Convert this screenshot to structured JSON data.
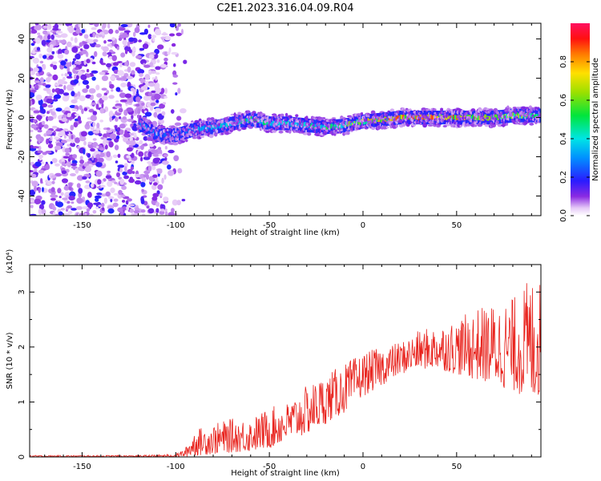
{
  "title": "C2E1.2023.316.04.09.R04",
  "chart_data": [
    {
      "type": "heatmap",
      "xlabel": "Height of straight line (km)",
      "ylabel": "Frequency (Hz)",
      "xlim": [
        -178,
        95
      ],
      "ylim": [
        -50,
        48
      ],
      "xticks": [
        -150,
        -100,
        -50,
        0,
        50
      ],
      "yticks": [
        -40,
        -20,
        0,
        20,
        40
      ],
      "colorbar": {
        "label": "Normalized spectral amplitude",
        "range": [
          0,
          1
        ],
        "ticks": [
          0.0,
          0.2,
          0.4,
          0.6,
          0.8
        ]
      },
      "ridge": {
        "description_points_x": [
          -118,
          -110,
          -100,
          -90,
          -80,
          -70,
          -60,
          -50,
          -40,
          -30,
          -20,
          -10,
          0,
          10,
          20,
          30,
          40,
          50,
          60,
          70,
          80,
          94
        ],
        "frequency_hz": [
          -4,
          -9,
          -9,
          -6,
          -5,
          -3,
          -1,
          -3,
          -3,
          -4,
          -5,
          -4,
          -2,
          -1,
          0,
          0,
          0,
          0,
          0,
          0,
          1,
          1
        ],
        "peak_amplitude": [
          0.35,
          0.3,
          0.25,
          0.35,
          0.4,
          0.45,
          0.55,
          0.5,
          0.45,
          0.5,
          0.55,
          0.6,
          0.75,
          0.8,
          0.9,
          0.95,
          0.9,
          0.85,
          0.75,
          0.7,
          0.7,
          0.6
        ]
      },
      "noise_region_x": [
        -178,
        -105
      ]
    },
    {
      "type": "line",
      "xlabel": "Height of straight line (km)",
      "ylabel": "SNR (10 * v/v)",
      "scale_label": "(x10⁴)",
      "xlim": [
        -178,
        95
      ],
      "ylim": [
        0,
        3.5
      ],
      "xticks": [
        -150,
        -100,
        -50,
        0,
        50
      ],
      "yticks": [
        0,
        1,
        2,
        3
      ],
      "color": "#e8201a",
      "series": [
        {
          "envelope_x": [
            -178,
            -120,
            -100,
            -95,
            -90,
            -80,
            -70,
            -60,
            -50,
            -40,
            -30,
            -20,
            -10,
            0,
            10,
            20,
            30,
            40,
            50,
            60,
            70,
            80,
            90,
            95
          ],
          "envelope_min": [
            0,
            0,
            0,
            0,
            0.02,
            0.05,
            0.08,
            0.1,
            0.15,
            0.3,
            0.4,
            0.6,
            0.8,
            1.1,
            1.3,
            1.5,
            1.6,
            1.6,
            1.5,
            1.4,
            1.3,
            1.2,
            1.0,
            1.1
          ],
          "envelope_max": [
            0.03,
            0.03,
            0.05,
            0.15,
            0.5,
            0.6,
            0.7,
            0.7,
            0.9,
            1.0,
            1.3,
            1.5,
            1.7,
            1.9,
            2.0,
            2.1,
            2.3,
            2.4,
            2.5,
            2.7,
            2.8,
            2.9,
            3.3,
            3.2
          ]
        }
      ]
    }
  ]
}
